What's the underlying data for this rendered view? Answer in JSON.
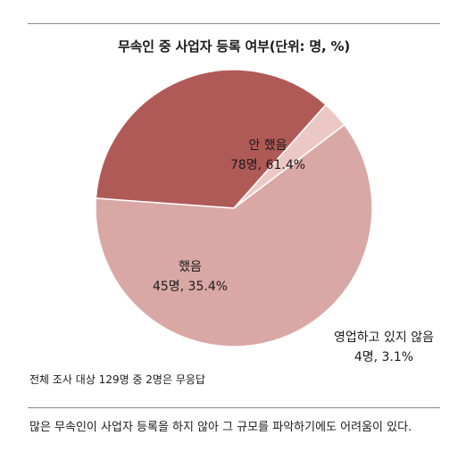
{
  "chart_data": {
    "type": "pie",
    "title": "무속인 중 사업자 등록 여부(단위: 명, %)",
    "categories": [
      "안 했음",
      "했음",
      "영업하고 있지 않음"
    ],
    "values": [
      78,
      45,
      4
    ],
    "percents": [
      61.4,
      35.4,
      3.1
    ],
    "value_labels": [
      "78명, 61.4%",
      "45명, 35.4%",
      "4명, 3.1%"
    ],
    "colors": [
      "#d9a8a4",
      "#b05a57",
      "#ecc8c5"
    ],
    "slice_border_color": "#ffffff",
    "note": "전체 조사 대상 129명 중 2명은 무응답"
  },
  "caption": "많은 무속인이 사업자 등록을 하지 않아 그 규모를 파악하기에도 어려움이 있다."
}
